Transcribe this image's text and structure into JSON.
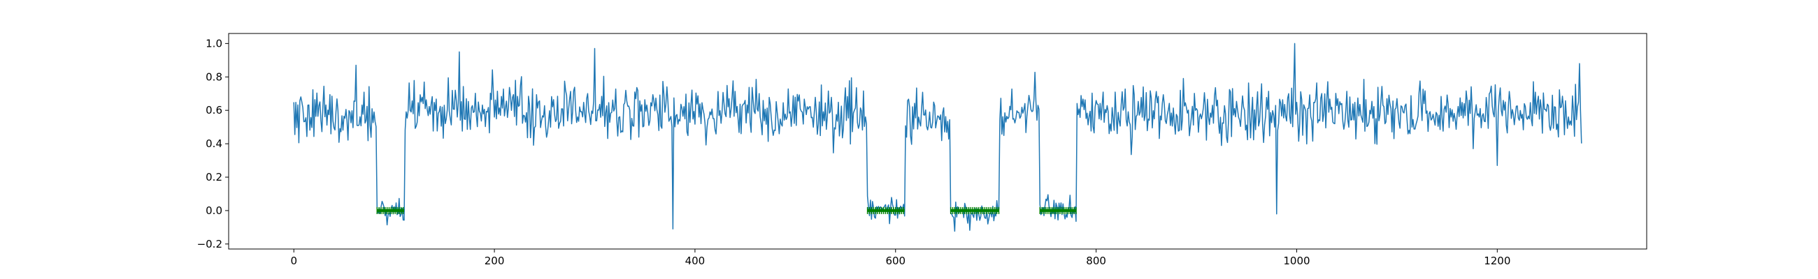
{
  "chart_data": {
    "type": "line",
    "title": "",
    "xlabel": "",
    "ylabel": "",
    "xlim": [
      -65,
      1349
    ],
    "ylim": [
      -0.23,
      1.06
    ],
    "x_ticks": [
      0,
      200,
      400,
      600,
      800,
      1000,
      1200
    ],
    "y_ticks": [
      -0.2,
      0.0,
      0.2,
      0.4,
      0.6,
      0.8,
      1.0
    ],
    "x_tick_labels": [
      "0",
      "200",
      "400",
      "600",
      "800",
      "1000",
      "1200"
    ],
    "y_tick_labels": [
      "−0.2",
      "0.0",
      "0.2",
      "0.4",
      "0.6",
      "0.8",
      "1.0"
    ],
    "grid": false,
    "series": [
      {
        "color": "#1f77b4",
        "description_note_free": true,
        "n_points": 1285,
        "segments": [
          {
            "x_start": 0,
            "x_end": 82,
            "level": "high",
            "mean": 0.57,
            "spread": 0.12
          },
          {
            "x_start": 83,
            "x_end": 110,
            "level": "low",
            "mean": 0.0,
            "spread": 0.06
          },
          {
            "x_start": 111,
            "x_end": 571,
            "level": "high",
            "mean": 0.6,
            "spread": 0.12
          },
          {
            "x_start": 572,
            "x_end": 609,
            "level": "low",
            "mean": 0.0,
            "spread": 0.05
          },
          {
            "x_start": 610,
            "x_end": 654,
            "level": "high",
            "mean": 0.55,
            "spread": 0.1
          },
          {
            "x_start": 655,
            "x_end": 703,
            "level": "low",
            "mean": -0.02,
            "spread": 0.05
          },
          {
            "x_start": 704,
            "x_end": 743,
            "level": "high",
            "mean": 0.6,
            "spread": 0.1
          },
          {
            "x_start": 744,
            "x_end": 780,
            "level": "low",
            "mean": 0.0,
            "spread": 0.06
          },
          {
            "x_start": 781,
            "x_end": 1284,
            "level": "high",
            "mean": 0.58,
            "spread": 0.12
          }
        ],
        "notable_points": [
          {
            "x": 62,
            "y": 0.87
          },
          {
            "x": 165,
            "y": 0.95
          },
          {
            "x": 300,
            "y": 0.97
          },
          {
            "x": 378,
            "y": -0.11
          },
          {
            "x": 980,
            "y": -0.02
          },
          {
            "x": 998,
            "y": 1.0
          },
          {
            "x": 1200,
            "y": 0.27
          },
          {
            "x": 1282,
            "y": 0.88
          }
        ]
      },
      {
        "color": "#008000",
        "type": "markers",
        "ranges": [
          {
            "x_start": 83,
            "x_end": 110,
            "y": 0.0
          },
          {
            "x_start": 572,
            "x_end": 609,
            "y": 0.0
          },
          {
            "x_start": 655,
            "x_end": 703,
            "y": 0.0
          },
          {
            "x_start": 744,
            "x_end": 780,
            "y": 0.0
          }
        ]
      }
    ]
  }
}
